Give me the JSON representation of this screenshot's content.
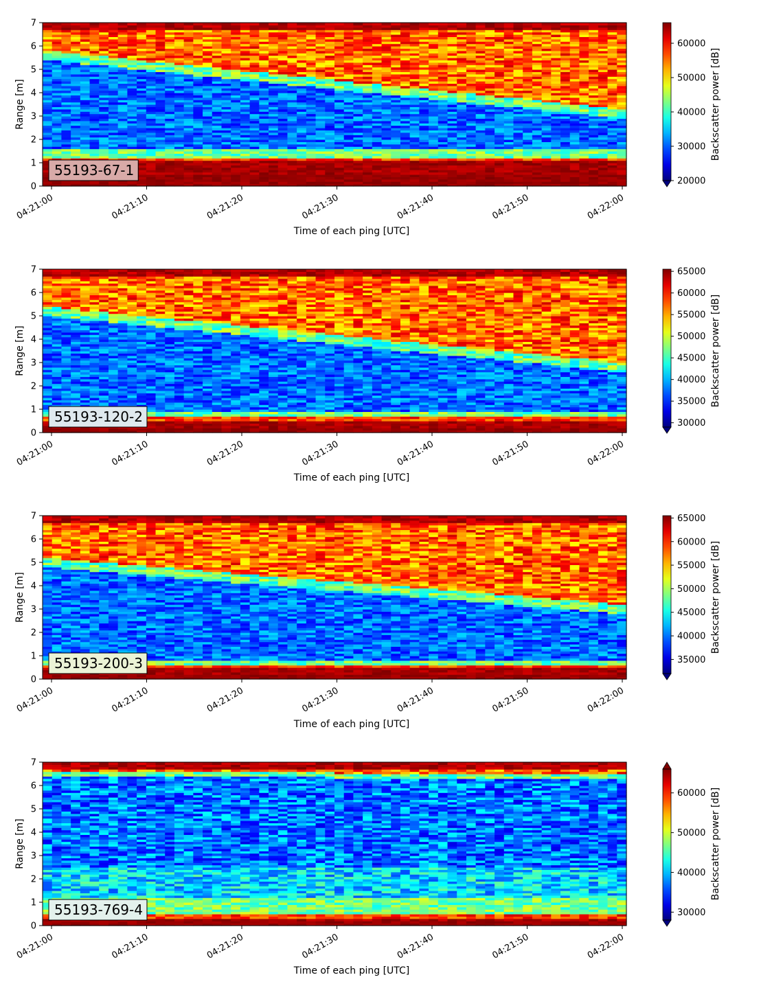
{
  "chart_data": [
    {
      "type": "heatmap",
      "panel_label": "55193-67-1",
      "xlabel": "Time of each ping [UTC]",
      "ylabel": "Range [m]",
      "x_ticks": [
        "04:21:00",
        "04:21:10",
        "04:21:20",
        "04:21:30",
        "04:21:40",
        "04:21:50",
        "04:22:00"
      ],
      "y_ticks": [
        "0",
        "1",
        "2",
        "3",
        "4",
        "5",
        "6",
        "7"
      ],
      "ylim": [
        0,
        7
      ],
      "colorbar": {
        "label": "Backscatter power [dB]",
        "ticks": [
          "20000",
          "30000",
          "40000",
          "50000",
          "60000"
        ],
        "min": 20000,
        "max": 66000,
        "extend": "min"
      },
      "colormap": "jet",
      "label_box_color": "#d8aaa8",
      "layers": {
        "bottom_echo_top_m": 1.1,
        "layer_top_m_start": 5.8,
        "layer_top_m_end": 3.3,
        "band_m": 1.6
      }
    },
    {
      "type": "heatmap",
      "panel_label": "55193-120-2",
      "xlabel": "Time of each ping [UTC]",
      "ylabel": "Range [m]",
      "x_ticks": [
        "04:21:00",
        "04:21:10",
        "04:21:20",
        "04:21:30",
        "04:21:40",
        "04:21:50",
        "04:22:00"
      ],
      "y_ticks": [
        "0",
        "1",
        "2",
        "3",
        "4",
        "5",
        "6",
        "7"
      ],
      "ylim": [
        0,
        7
      ],
      "colorbar": {
        "label": "Backscatter power [dB]",
        "ticks": [
          "30000",
          "35000",
          "40000",
          "45000",
          "50000",
          "55000",
          "60000",
          "65000"
        ],
        "min": 29000,
        "max": 65500,
        "extend": "min"
      },
      "colormap": "jet",
      "label_box_color": "#dfe9ee",
      "layers": {
        "bottom_echo_top_m": 0.55,
        "layer_top_m_start": 5.4,
        "layer_top_m_end": 3.0,
        "band_m": 0.9
      }
    },
    {
      "type": "heatmap",
      "panel_label": "55193-200-3",
      "xlabel": "Time of each ping [UTC]",
      "ylabel": "Range [m]",
      "x_ticks": [
        "04:21:00",
        "04:21:10",
        "04:21:20",
        "04:21:30",
        "04:21:40",
        "04:21:50",
        "04:22:00"
      ],
      "y_ticks": [
        "0",
        "1",
        "2",
        "3",
        "4",
        "5",
        "6",
        "7"
      ],
      "ylim": [
        0,
        7
      ],
      "colorbar": {
        "label": "Backscatter power [dB]",
        "ticks": [
          "35000",
          "40000",
          "45000",
          "50000",
          "55000",
          "60000",
          "65000"
        ],
        "min": 32000,
        "max": 65500,
        "extend": "min"
      },
      "colormap": "jet",
      "label_box_color": "#ebf3d6",
      "layers": {
        "bottom_echo_top_m": 0.45,
        "layer_top_m_start": 5.2,
        "layer_top_m_end": 3.2,
        "band_m": 0.8
      }
    },
    {
      "type": "heatmap",
      "panel_label": "55193-769-4",
      "xlabel": "Time of each ping [UTC]",
      "ylabel": "Range [m]",
      "x_ticks": [
        "04:21:00",
        "04:21:10",
        "04:21:20",
        "04:21:30",
        "04:21:40",
        "04:21:50",
        "04:22:00"
      ],
      "y_ticks": [
        "0",
        "1",
        "2",
        "3",
        "4",
        "5",
        "6",
        "7"
      ],
      "ylim": [
        0,
        7
      ],
      "colorbar": {
        "label": "Backscatter power [dB]",
        "ticks": [
          "30000",
          "40000",
          "50000",
          "60000"
        ],
        "min": 28000,
        "max": 66000,
        "extend": "both"
      },
      "colormap": "jet",
      "label_box_color": "#e3f1ec",
      "layers": {
        "bottom_echo_top_m": 0.35,
        "layer_top_m_start": 6.6,
        "layer_top_m_end": 6.5,
        "band_m": 1.2
      }
    }
  ]
}
